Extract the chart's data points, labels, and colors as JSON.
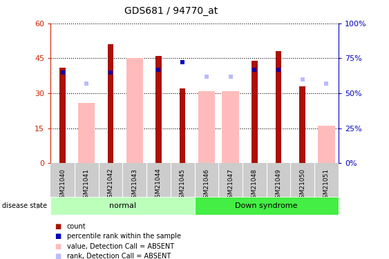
{
  "title": "GDS681 / 94770_at",
  "samples": [
    "GSM21040",
    "GSM21041",
    "GSM21042",
    "GSM21043",
    "GSM21044",
    "GSM21045",
    "GSM21046",
    "GSM21047",
    "GSM21048",
    "GSM21049",
    "GSM21050",
    "GSM21051"
  ],
  "count_values": [
    41,
    0,
    51,
    0,
    46,
    32,
    0,
    0,
    44,
    48,
    33,
    0
  ],
  "percentile_values_right": [
    65,
    0,
    65,
    0,
    67,
    72,
    0,
    0,
    67,
    67,
    0,
    0
  ],
  "absent_value_bars_left": [
    0,
    26,
    0,
    45,
    0,
    0,
    31,
    31,
    0,
    0,
    0,
    16
  ],
  "absent_rank_dots_right": [
    0,
    57,
    0,
    0,
    0,
    0,
    62,
    62,
    0,
    0,
    60,
    57
  ],
  "ylim_left": [
    0,
    60
  ],
  "ylim_right": [
    0,
    100
  ],
  "yticks_left": [
    0,
    15,
    30,
    45,
    60
  ],
  "ytick_labels_left": [
    "0",
    "15",
    "30",
    "45",
    "60"
  ],
  "ytick_labels_right": [
    "0%",
    "25%",
    "50%",
    "75%",
    "100%"
  ],
  "color_count": "#aa1100",
  "color_percentile": "#0000bb",
  "color_absent_value": "#ffbbbb",
  "color_absent_rank": "#bbbbff",
  "color_normal_bg": "#bbffbb",
  "color_downsyndrome_bg": "#44ee44",
  "color_xtick_bg": "#cccccc",
  "color_tick_left": "#cc2200",
  "color_tick_right": "#0000bb",
  "legend_items": [
    "count",
    "percentile rank within the sample",
    "value, Detection Call = ABSENT",
    "rank, Detection Call = ABSENT"
  ]
}
